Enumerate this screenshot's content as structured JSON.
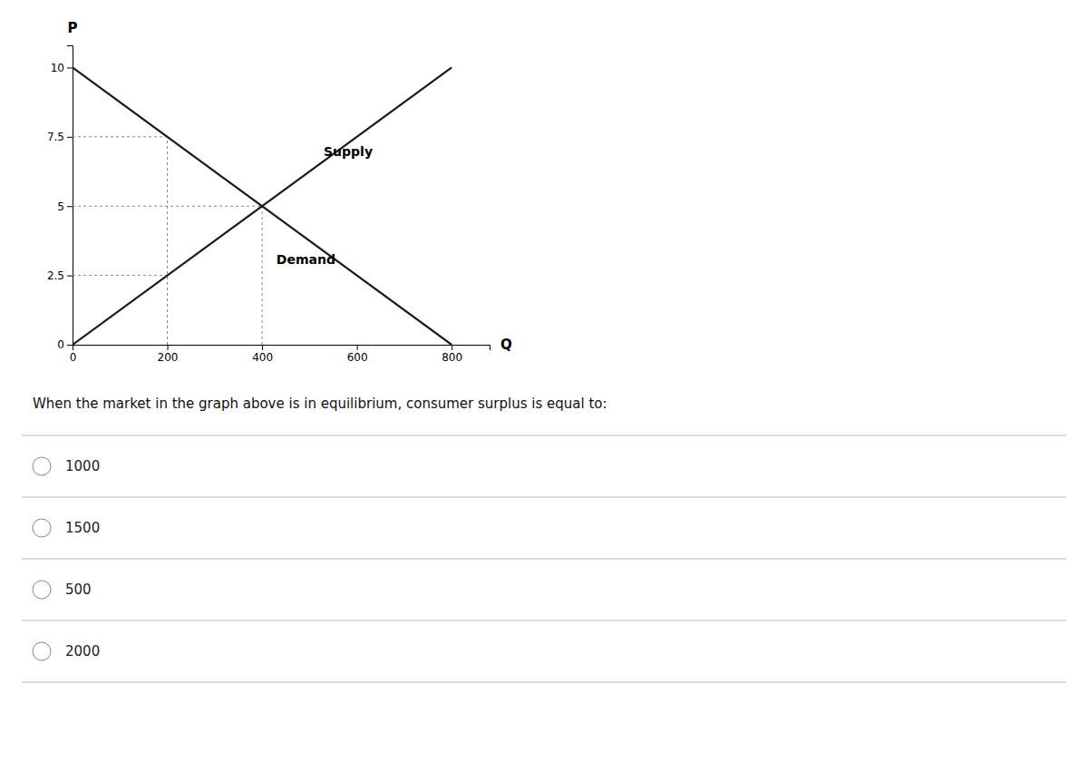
{
  "chart_data": {
    "type": "line",
    "series": [
      {
        "x": [
          0,
          800
        ],
        "values": [
          0,
          10
        ],
        "color": "#1a1a1a"
      },
      {
        "x": [
          0,
          800
        ],
        "values": [
          10,
          0
        ],
        "color": "#1a1a1a"
      }
    ],
    "reference_lines": [
      {
        "x": 200,
        "y": 7.5
      },
      {
        "x": 400,
        "y": 5.0
      },
      {
        "x": 200,
        "y": 2.5
      }
    ],
    "xlim": [
      0,
      880
    ],
    "ylim": [
      0,
      10.8
    ],
    "xticks": [
      0,
      200,
      400,
      600,
      800
    ],
    "yticks": [
      0,
      2.5,
      5,
      7.5,
      10
    ],
    "xlabel": "Q",
    "ylabel": "P",
    "annotations": [
      {
        "text": "Supply",
        "x": 530,
        "y": 6.8
      },
      {
        "text": "Demand",
        "x": 430,
        "y": 2.9
      }
    ],
    "question": {
      "text": "When the market in the graph above is in equilibrium, consumer surplus is equal to:",
      "options": [
        "1000",
        "1500",
        "500",
        "2000"
      ]
    }
  }
}
